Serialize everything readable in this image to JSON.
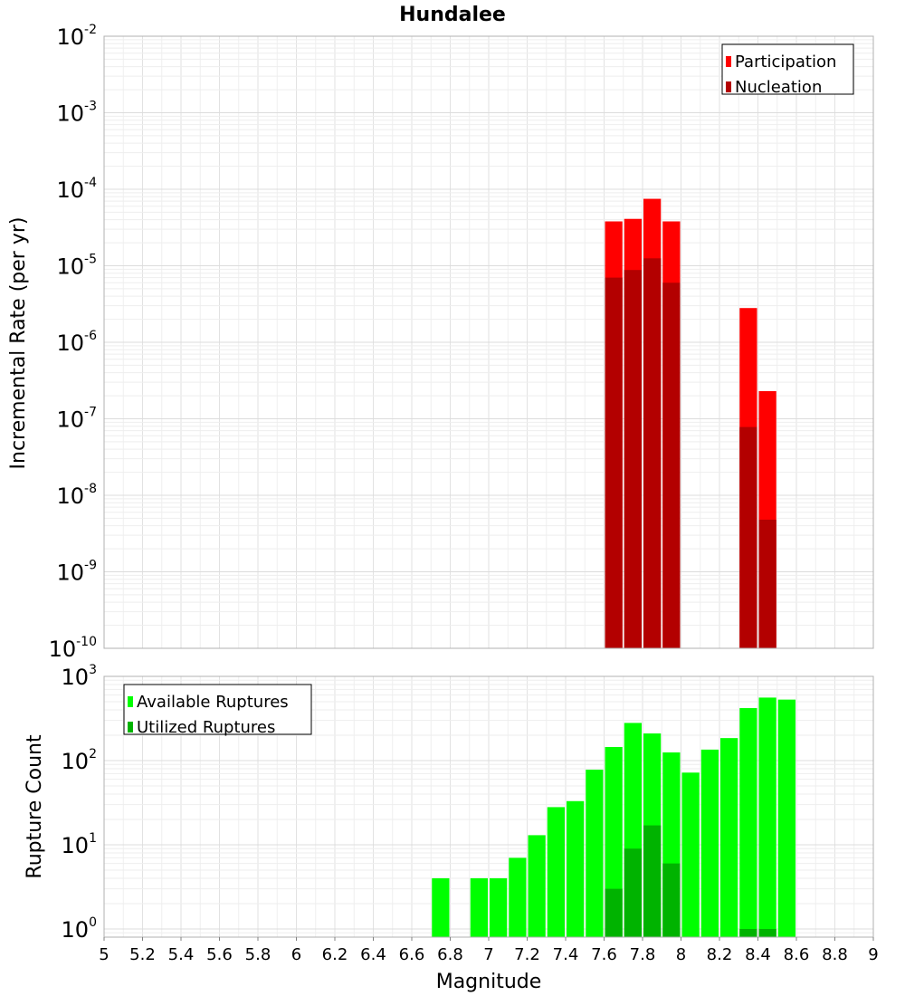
{
  "chart_data": [
    {
      "type": "bar",
      "title": "Hundalee",
      "xlabel": "",
      "ylabel": "Incremental Rate (per yr)",
      "yscale": "log",
      "ylim": [
        1e-10,
        0.01
      ],
      "xlim": [
        5,
        9
      ],
      "bar_width": 0.1,
      "y_ticks": [
        {
          "base": "10",
          "exp": "-10",
          "value": 1e-10
        },
        {
          "base": "10",
          "exp": "-9",
          "value": 1e-09
        },
        {
          "base": "10",
          "exp": "-8",
          "value": 1e-08
        },
        {
          "base": "10",
          "exp": "-7",
          "value": 1e-07
        },
        {
          "base": "10",
          "exp": "-6",
          "value": 1e-06
        },
        {
          "base": "10",
          "exp": "-5",
          "value": 1e-05
        },
        {
          "base": "10",
          "exp": "-4",
          "value": 0.0001
        },
        {
          "base": "10",
          "exp": "-3",
          "value": 0.001
        },
        {
          "base": "10",
          "exp": "-2",
          "value": 0.01
        }
      ],
      "legend": {
        "position": "top-right",
        "entries": [
          "Participation",
          "Nucleation"
        ]
      },
      "series": [
        {
          "name": "Participation",
          "color": "#ff0000",
          "x": [
            7.65,
            7.75,
            7.85,
            7.95,
            8.35,
            8.45
          ],
          "values": [
            3.8e-05,
            4.1e-05,
            7.5e-05,
            3.8e-05,
            2.8e-06,
            2.3e-07
          ]
        },
        {
          "name": "Nucleation",
          "color": "#b30000",
          "x": [
            7.65,
            7.75,
            7.85,
            7.95,
            8.35,
            8.45
          ],
          "values": [
            7e-06,
            8.8e-06,
            1.25e-05,
            6e-06,
            7.8e-08,
            4.8e-09
          ]
        }
      ]
    },
    {
      "type": "bar",
      "title": "",
      "xlabel": "Magnitude",
      "ylabel": "Rupture Count",
      "yscale": "log",
      "ylim": [
        0.8,
        1000
      ],
      "xlim": [
        5,
        9
      ],
      "bar_width": 0.1,
      "x_ticks": [
        "5",
        "5.2",
        "5.4",
        "5.6",
        "5.8",
        "6",
        "6.2",
        "6.4",
        "6.6",
        "6.8",
        "7",
        "7.2",
        "7.4",
        "7.6",
        "7.8",
        "8",
        "8.2",
        "8.4",
        "8.6",
        "8.8",
        "9"
      ],
      "y_ticks": [
        {
          "base": "10",
          "exp": "0",
          "value": 1
        },
        {
          "base": "10",
          "exp": "1",
          "value": 10
        },
        {
          "base": "10",
          "exp": "2",
          "value": 100
        },
        {
          "base": "10",
          "exp": "3",
          "value": 1000
        }
      ],
      "legend": {
        "position": "top-left",
        "entries": [
          "Available Ruptures",
          "Utilized Ruptures"
        ]
      },
      "series": [
        {
          "name": "Available Ruptures",
          "color": "#00ff00",
          "x": [
            6.75,
            6.95,
            7.05,
            7.15,
            7.25,
            7.35,
            7.45,
            7.55,
            7.65,
            7.75,
            7.85,
            7.95,
            8.05,
            8.15,
            8.25,
            8.35,
            8.45,
            8.55
          ],
          "values": [
            4,
            4,
            4,
            7,
            13,
            28,
            33,
            78,
            145,
            280,
            210,
            125,
            72,
            135,
            185,
            420,
            560,
            530
          ]
        },
        {
          "name": "Utilized Ruptures",
          "color": "#00b300",
          "x": [
            7.65,
            7.75,
            7.85,
            7.95,
            8.35,
            8.45
          ],
          "values": [
            3,
            9,
            17,
            6,
            1,
            1
          ]
        }
      ]
    }
  ]
}
